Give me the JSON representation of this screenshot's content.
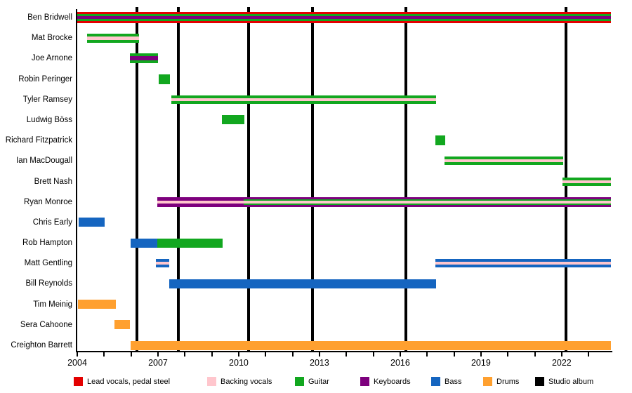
{
  "chart_data": {
    "type": "timeline",
    "variant": "band-membership-gantt",
    "title": "",
    "x_axis": {
      "start": 2004,
      "end": 2023.83,
      "tick_step_years": 1,
      "labeled_years": [
        2004,
        2007,
        2010,
        2013,
        2016,
        2019,
        2022
      ]
    },
    "colors": {
      "lead": "#e30000",
      "backing": "#ffc6cd",
      "guitar": "#12a71f",
      "keys": "#7d007d",
      "bass": "#1565c0",
      "drums": "#ffa02f",
      "album": "#000000"
    },
    "legend": [
      {
        "key": "lead",
        "label": "Lead vocals, pedal steel"
      },
      {
        "key": "backing",
        "label": "Backing vocals"
      },
      {
        "key": "guitar",
        "label": "Guitar"
      },
      {
        "key": "keys",
        "label": "Keyboards"
      },
      {
        "key": "bass",
        "label": "Bass"
      },
      {
        "key": "drums",
        "label": "Drums"
      },
      {
        "key": "album",
        "label": "Studio album"
      }
    ],
    "album_release_lines_years": [
      2006.22,
      2007.76,
      2010.37,
      2012.74,
      2016.21,
      2022.16
    ],
    "members": [
      {
        "name": "Ben Bridwell",
        "segments": [
          {
            "start": 2004.0,
            "end": 2023.83,
            "stripes": [
              [
                "lead",
                3
              ],
              [
                "guitar",
                3
              ],
              [
                "keys",
                4
              ],
              [
                "guitar",
                3
              ],
              [
                "lead",
                3
              ]
            ]
          }
        ]
      },
      {
        "name": "Mat Brocke",
        "segments": [
          {
            "start": 2004.37,
            "end": 2006.3,
            "stripes": [
              [
                "guitar",
                4
              ],
              [
                "backing",
                5
              ],
              [
                "guitar",
                4
              ]
            ]
          }
        ]
      },
      {
        "name": "Joe Arnone",
        "segments": [
          {
            "start": 2005.95,
            "end": 2007.0,
            "stripes": [
              [
                "guitar",
                4
              ],
              [
                "keys",
                6
              ],
              [
                "guitar",
                4
              ]
            ]
          }
        ]
      },
      {
        "name": "Robin Peringer",
        "segments": [
          {
            "start": 2007.03,
            "end": 2007.44,
            "stripes": [
              [
                "guitar",
                14
              ]
            ]
          }
        ]
      },
      {
        "name": "Tyler Ramsey",
        "segments": [
          {
            "start": 2007.5,
            "end": 2017.33,
            "stripes": [
              [
                "guitar",
                4
              ],
              [
                "backing",
                4
              ],
              [
                "guitar",
                4
              ]
            ]
          }
        ]
      },
      {
        "name": "Ludwig Böss",
        "segments": [
          {
            "start": 2009.37,
            "end": 2010.21,
            "stripes": [
              [
                "guitar",
                13
              ]
            ]
          }
        ]
      },
      {
        "name": "Richard Fitzpatrick",
        "segments": [
          {
            "start": 2017.31,
            "end": 2017.67,
            "stripes": [
              [
                "guitar",
                14
              ]
            ]
          }
        ]
      },
      {
        "name": "Ian MacDougall",
        "segments": [
          {
            "start": 2017.65,
            "end": 2022.06,
            "stripes": [
              [
                "guitar",
                4
              ],
              [
                "backing",
                4
              ],
              [
                "guitar",
                4
              ]
            ]
          }
        ]
      },
      {
        "name": "Brett Nash",
        "segments": [
          {
            "start": 2022.03,
            "end": 2023.83,
            "stripes": [
              [
                "guitar",
                4
              ],
              [
                "backing",
                4
              ],
              [
                "guitar",
                4
              ]
            ]
          }
        ]
      },
      {
        "name": "Ryan Monroe",
        "segments": [
          {
            "start": 2006.97,
            "end": 2010.18,
            "stripes": [
              [
                "keys",
                5
              ],
              [
                "backing",
                4
              ],
              [
                "keys",
                5
              ]
            ]
          },
          {
            "start": 2010.18,
            "end": 2023.83,
            "stripes": [
              [
                "keys",
                3
              ],
              [
                "guitar",
                2
              ],
              [
                "backing",
                4
              ],
              [
                "guitar",
                2
              ],
              [
                "keys",
                3
              ]
            ]
          }
        ]
      },
      {
        "name": "Chris Early",
        "segments": [
          {
            "start": 2004.05,
            "end": 2005.02,
            "stripes": [
              [
                "bass",
                13
              ]
            ]
          }
        ]
      },
      {
        "name": "Rob Hampton",
        "segments": [
          {
            "start": 2005.98,
            "end": 2006.97,
            "stripes": [
              [
                "bass",
                13
              ]
            ]
          },
          {
            "start": 2006.97,
            "end": 2009.4,
            "stripes": [
              [
                "guitar",
                13
              ]
            ]
          }
        ]
      },
      {
        "name": "Matt Gentling",
        "segments": [
          {
            "start": 2006.92,
            "end": 2007.42,
            "stripes": [
              [
                "bass",
                4
              ],
              [
                "backing",
                4
              ],
              [
                "bass",
                4
              ]
            ]
          },
          {
            "start": 2017.31,
            "end": 2023.83,
            "stripes": [
              [
                "bass",
                4
              ],
              [
                "backing",
                4
              ],
              [
                "bass",
                4
              ]
            ]
          }
        ]
      },
      {
        "name": "Bill Reynolds",
        "segments": [
          {
            "start": 2007.42,
            "end": 2017.33,
            "stripes": [
              [
                "bass",
                13
              ]
            ]
          }
        ]
      },
      {
        "name": "Tim Meinig",
        "segments": [
          {
            "start": 2004.03,
            "end": 2005.43,
            "stripes": [
              [
                "drums",
                13
              ]
            ]
          }
        ]
      },
      {
        "name": "Sera Cahoone",
        "segments": [
          {
            "start": 2005.38,
            "end": 2005.96,
            "stripes": [
              [
                "drums",
                13
              ]
            ]
          }
        ]
      },
      {
        "name": "Creighton Barrett",
        "segments": [
          {
            "start": 2005.98,
            "end": 2023.83,
            "stripes": [
              [
                "drums",
                13
              ]
            ]
          }
        ]
      }
    ]
  }
}
